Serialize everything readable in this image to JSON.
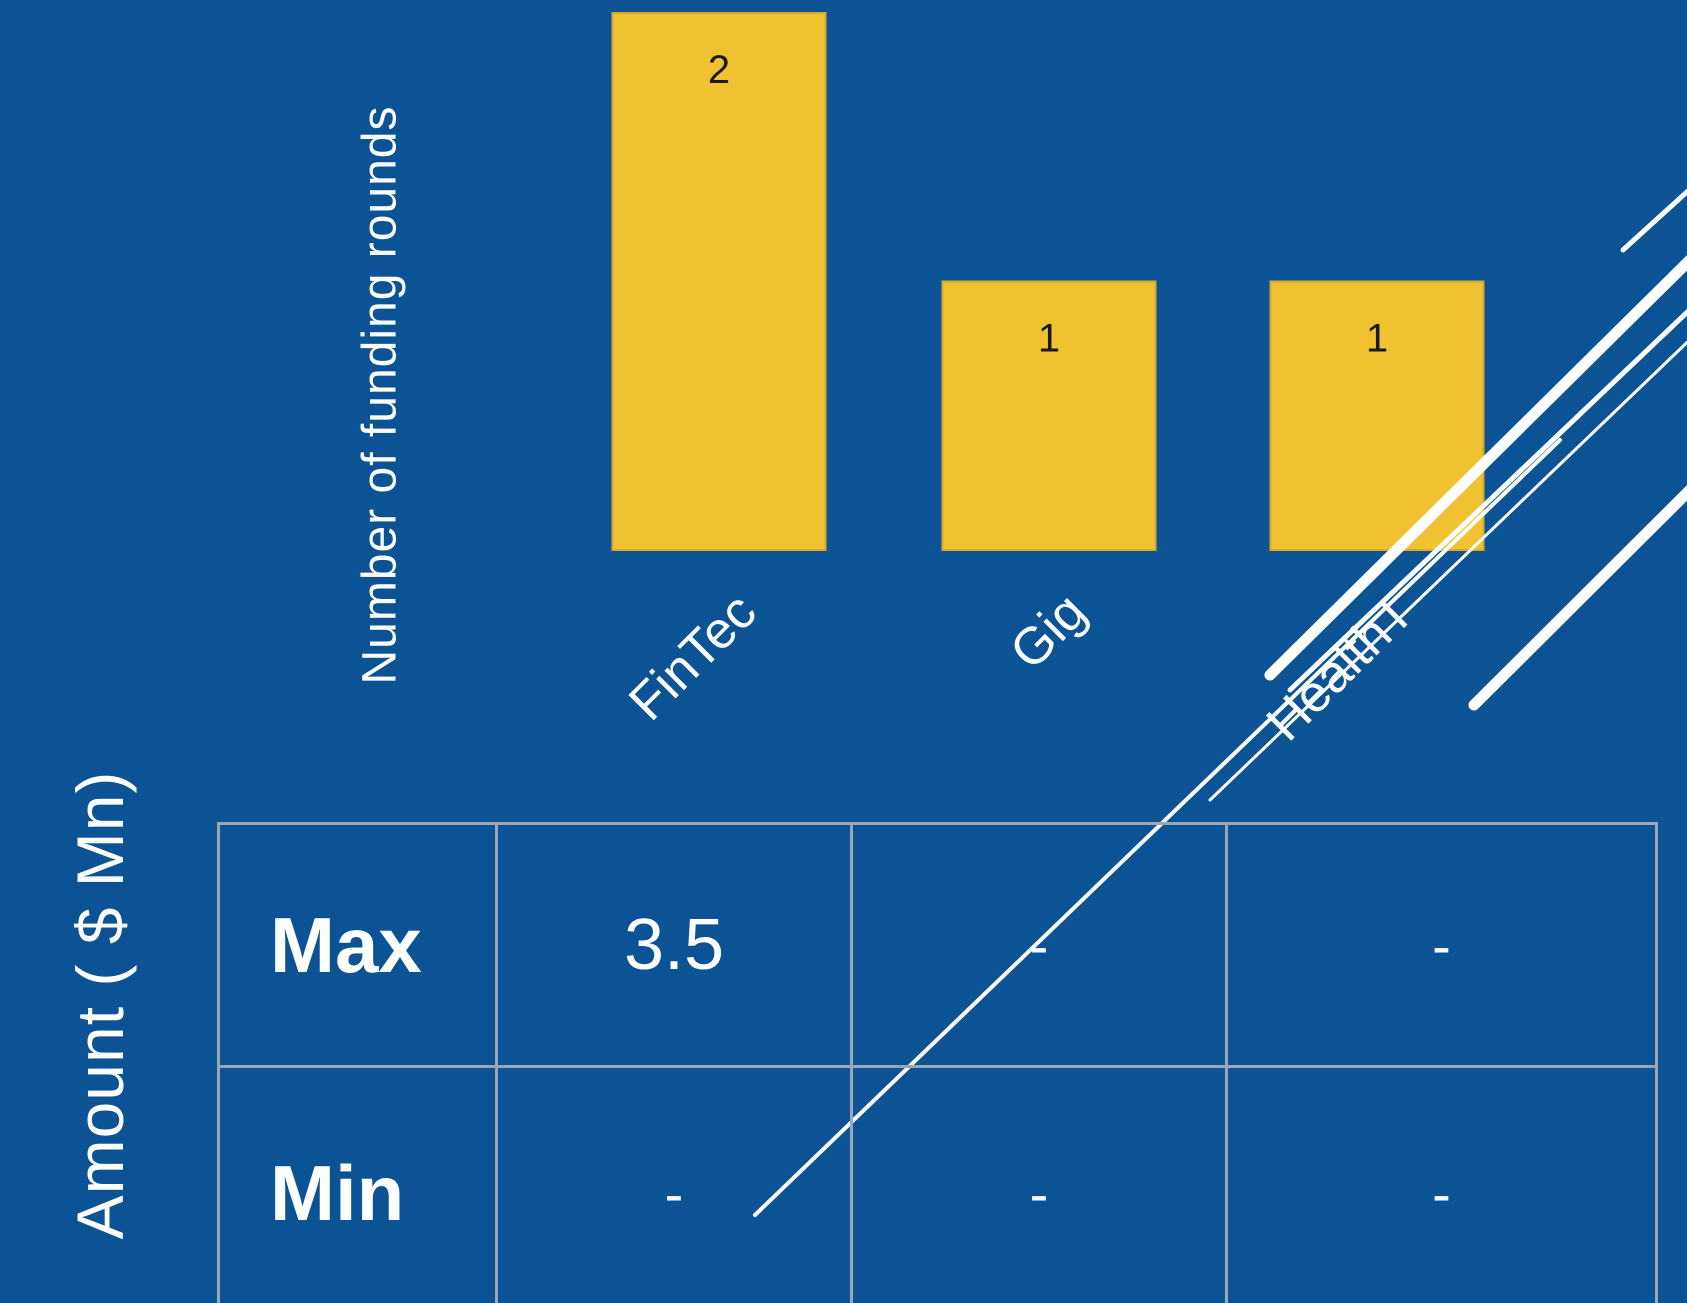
{
  "chart_data": {
    "type": "bar",
    "categories": [
      "FinTec",
      "Gig",
      "HealthT"
    ],
    "values": [
      2,
      1,
      1
    ],
    "data_labels": [
      "2",
      "1",
      "1"
    ],
    "ylabel": "Number of funding rounds",
    "xlabel": "",
    "ylim": [
      0,
      2
    ],
    "grid": false,
    "legend": "none",
    "bar_color": "#f0c232",
    "background_color": "#0b5394"
  },
  "amount_table": {
    "label": "Amount ( $ Mn)",
    "rows": [
      {
        "name": "Max",
        "values": [
          "3.5",
          "-",
          "-"
        ]
      },
      {
        "name": "Min",
        "values": [
          "-",
          "-",
          "-"
        ]
      }
    ]
  }
}
